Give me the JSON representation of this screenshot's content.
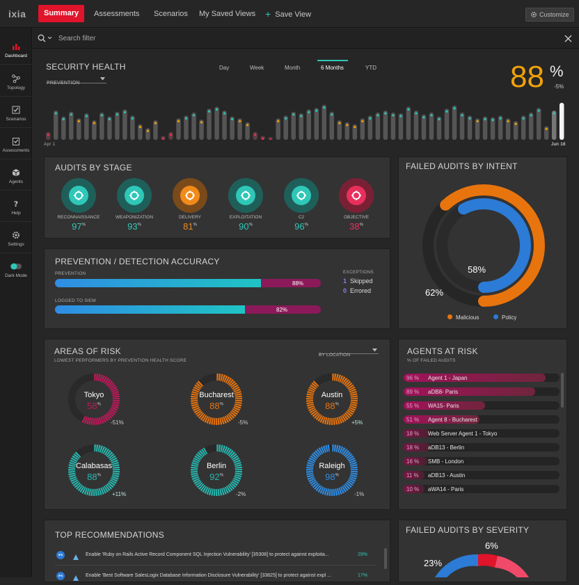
{
  "app": {
    "logo": "ixia"
  },
  "nav": {
    "summary": "Summary",
    "assessments": "Assessments",
    "scenarios": "Scenarios",
    "saved_views": "My Saved Views",
    "save_view": "Save View",
    "customize": "Customize"
  },
  "sidebar": {
    "items": [
      {
        "label": "Dashboard",
        "icon": "bar-chart-icon"
      },
      {
        "label": "Topology",
        "icon": "topology-icon"
      },
      {
        "label": "Scenarios",
        "icon": "checkbox-icon"
      },
      {
        "label": "Assessments",
        "icon": "clipboard-icon"
      },
      {
        "label": "Agents",
        "icon": "cube-icon"
      },
      {
        "label": "Help",
        "icon": "help-icon"
      },
      {
        "label": "Settings",
        "icon": "gear-icon"
      },
      {
        "label": "Dark Mode",
        "icon": "toggle-icon"
      }
    ]
  },
  "search": {
    "placeholder": "Search filter"
  },
  "health": {
    "title": "SECURITY HEALTH",
    "dropdown": "PREVENTION",
    "tabs": [
      "Day",
      "Week",
      "Month",
      "6 Months",
      "YTD"
    ],
    "active_tab": "6 Months",
    "value": "88",
    "unit": "%",
    "delta": "-5%",
    "start_label": "Apr 1",
    "end_label": "Jun 18",
    "bars": [
      0.2,
      0.75,
      0.6,
      0.72,
      0.55,
      0.68,
      0.5,
      0.7,
      0.6,
      0.72,
      0.78,
      0.62,
      0.4,
      0.3,
      0.5,
      0.1,
      0.2,
      0.55,
      0.62,
      0.7,
      0.52,
      0.8,
      0.85,
      0.75,
      0.6,
      0.55,
      0.45,
      0.2,
      0.1,
      0.05,
      0.55,
      0.62,
      0.72,
      0.68,
      0.78,
      0.82,
      0.9,
      0.72,
      0.5,
      0.45,
      0.4,
      0.55,
      0.62,
      0.7,
      0.75,
      0.7,
      0.68,
      0.85,
      0.75,
      0.65,
      0.7,
      0.6,
      0.8,
      0.88,
      0.7,
      0.62,
      0.55,
      0.6,
      0.58,
      0.62,
      0.55,
      0.48,
      0.62,
      0.7,
      0.82,
      0.35,
      0.75,
      0.95
    ]
  },
  "audits_by_stage": {
    "title": "AUDITS BY STAGE",
    "stages": [
      {
        "label": "RECONNAISSANCE",
        "value": "97",
        "unit": "%",
        "icon": "binoculars-icon",
        "color": "#2fc7b8"
      },
      {
        "label": "WEAPONIZATION",
        "value": "93",
        "unit": "%",
        "icon": "bomb-icon",
        "color": "#2fc7b8"
      },
      {
        "label": "DELIVERY",
        "value": "81",
        "unit": "%",
        "icon": "envelope-icon",
        "color": "#f08a1a"
      },
      {
        "label": "EXPLOITATION",
        "value": "90",
        "unit": "%",
        "icon": "bug-icon",
        "color": "#2fc7b8"
      },
      {
        "label": "C2",
        "value": "96",
        "unit": "%",
        "icon": "satellite-icon",
        "color": "#2fc7b8"
      },
      {
        "label": "OBJECTIVE",
        "value": "38",
        "unit": "%",
        "icon": "skull-icon",
        "color": "#e8305c"
      }
    ]
  },
  "failed_intent": {
    "title": "FAILED AUDITS BY INTENT",
    "inner_pct": "58%",
    "outer_pct": "62%",
    "legend": [
      {
        "label": "Malicious",
        "color": "#e8740e"
      },
      {
        "label": "Policy",
        "color": "#2c7bd6"
      }
    ],
    "malicious": 62,
    "policy": 58
  },
  "accuracy": {
    "title": "PREVENTION / DETECTION  ACCURACY",
    "prevention_label": "PREVENTION",
    "prevention_value": "88%",
    "prevention": 88,
    "siem_label": "LOGGED TO SIEM",
    "siem_value": "82%",
    "siem": 82,
    "exceptions_title": "EXCEPTIONS",
    "skipped_count": "1",
    "skipped_label": "Skipped",
    "errored_count": "0",
    "errored_label": "Errored"
  },
  "areas": {
    "title": "AREAS OF RISK",
    "subtitle": "LOWEST PERFORMERS BY PREVENTION HEALTH SCORE",
    "dropdown": "BY LOCATION",
    "cities": [
      {
        "name": "Tokyo",
        "value": "58",
        "unit": "%",
        "delta": "-51%",
        "color": "#c2185b",
        "pct": 58
      },
      {
        "name": "Bucharest",
        "value": "88",
        "unit": "%",
        "delta": "-5%",
        "color": "#e8740e",
        "pct": 88
      },
      {
        "name": "Austin",
        "value": "88",
        "unit": "%",
        "delta": "+5%",
        "color": "#e8740e",
        "pct": 88
      },
      {
        "name": "Calabasas",
        "value": "88",
        "unit": "%",
        "delta": "+11%",
        "color": "#26b8b0",
        "pct": 88
      },
      {
        "name": "Berlin",
        "value": "92",
        "unit": "%",
        "delta": "-2%",
        "color": "#26b8b0",
        "pct": 92
      },
      {
        "name": "Raleigh",
        "value": "98",
        "unit": "%",
        "delta": "-1%",
        "color": "#2f8de4",
        "pct": 98
      }
    ]
  },
  "agents": {
    "title": "AGENTS AT RISK",
    "subtitle": "% OF FAILED AUDITS",
    "rows": [
      {
        "pct": "96 %",
        "name": "Agent 1 - Japan",
        "value": 96
      },
      {
        "pct": "89 %",
        "name": "aDB8- Paris",
        "value": 89
      },
      {
        "pct": "55 %",
        "name": "WA15- Paris",
        "value": 55
      },
      {
        "pct": "51 %",
        "name": "Agent 8 - Bucharest",
        "value": 51
      },
      {
        "pct": "18 %",
        "name": "Web Server Agent 1 - Tokyo",
        "value": 18
      },
      {
        "pct": "18 %",
        "name": "aDB13 - Berlin",
        "value": 18
      },
      {
        "pct": "16 %",
        "name": "SMB - London",
        "value": 16
      },
      {
        "pct": "11 %",
        "name": "aDB13 - Austin",
        "value": 11
      },
      {
        "pct": "10 %",
        "name": "aWA14 - Paris",
        "value": 10
      }
    ]
  },
  "recommendations": {
    "title": "TOP RECOMMENDATIONS",
    "rows": [
      {
        "badge": "IPS",
        "text": "Enable 'Ruby on Rails Active Record Component SQL Injection Vulnerability' [35308] to protect against exploita...",
        "pct": "29%"
      },
      {
        "badge": "IPS",
        "text": "Enable 'Best Software SalesLogix Database Information Disclosure Vulnerability' [33825] to protect against expl ...",
        "pct": "17%"
      }
    ]
  },
  "severity": {
    "title": "FAILED AUDITS BY SEVERITY",
    "labels": [
      "23%",
      "6%"
    ]
  }
}
